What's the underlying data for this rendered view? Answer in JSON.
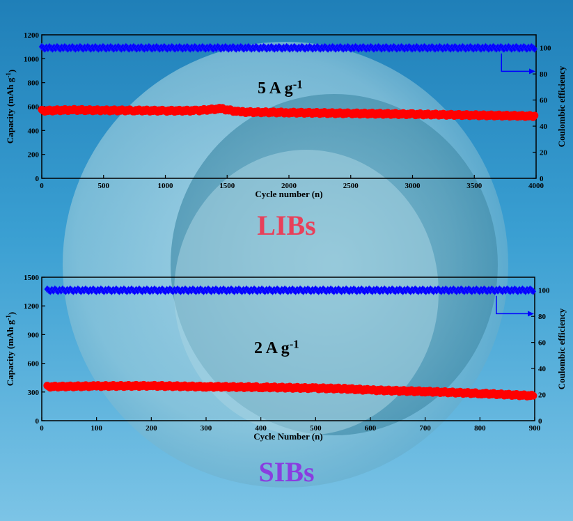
{
  "colors": {
    "capacity": "#ff0000",
    "efficiency": "#0000ff",
    "libs_label": "#e8405a",
    "sibs_label": "#8a3de0"
  },
  "libs_label": "LIBs",
  "sibs_label": "SIBs",
  "chart_data": [
    {
      "type": "scatter",
      "annotation": {
        "base": "5 A g",
        "sup": "-1"
      },
      "xlabel": "Cycle number (n)",
      "ylabel_left": {
        "base": "Capacity (mAh g",
        "sup": "-1",
        "close": ")"
      },
      "ylabel_right": "Coulombic efficiency",
      "xlim": [
        0,
        4000
      ],
      "ylim_left": [
        0,
        1200
      ],
      "ylim_right": [
        0,
        110
      ],
      "xticks": [
        0,
        500,
        1000,
        1500,
        2000,
        2500,
        3000,
        3500,
        4000
      ],
      "yticks_left": [
        0,
        200,
        400,
        600,
        800,
        1000,
        1200
      ],
      "yticks_right": [
        0,
        20,
        40,
        60,
        80,
        100
      ],
      "grid": false,
      "series": [
        {
          "axis": "left",
          "color": "#ff0000",
          "x": [
            0,
            250,
            500,
            750,
            1000,
            1250,
            1450,
            1600,
            2000,
            2500,
            3000,
            3500,
            4000
          ],
          "y": [
            565,
            572,
            568,
            568,
            565,
            566,
            582,
            555,
            550,
            543,
            536,
            528,
            520
          ]
        },
        {
          "axis": "right",
          "color": "#0000ff",
          "x": [
            0,
            4000
          ],
          "y": [
            100,
            100
          ]
        }
      ],
      "arrow_to": "right"
    },
    {
      "type": "scatter",
      "annotation": {
        "base": "2 A g",
        "sup": "-1"
      },
      "xlabel": "Cycle Number (n)",
      "ylabel_left": {
        "base": "Capacity (mAh g",
        "sup": "-1",
        "close": ")"
      },
      "ylabel_right": "Coulombic efficiency",
      "xlim": [
        0,
        900
      ],
      "ylim_left": [
        0,
        1500
      ],
      "ylim_right": [
        0,
        110
      ],
      "xticks": [
        0,
        100,
        200,
        300,
        400,
        500,
        600,
        700,
        800,
        900
      ],
      "yticks_left": [
        0,
        300,
        600,
        900,
        1200,
        1500
      ],
      "yticks_right": [
        0,
        20,
        40,
        60,
        80,
        100
      ],
      "grid": false,
      "series": [
        {
          "axis": "left",
          "color": "#ff0000",
          "x": [
            10,
            100,
            200,
            300,
            400,
            500,
            550,
            600,
            700,
            800,
            900
          ],
          "y": [
            355,
            362,
            365,
            355,
            350,
            340,
            335,
            320,
            305,
            285,
            260
          ]
        },
        {
          "axis": "right",
          "color": "#0000ff",
          "x": [
            10,
            900
          ],
          "y": [
            100,
            100
          ]
        }
      ],
      "arrow_to": "right"
    }
  ]
}
